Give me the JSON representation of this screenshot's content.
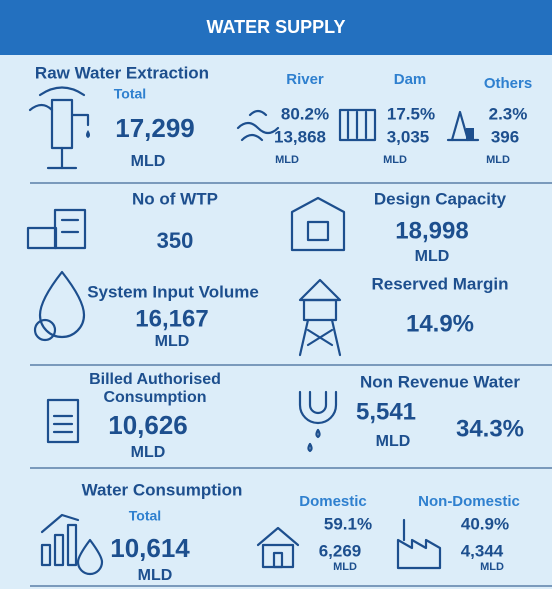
{
  "header": {
    "title": "WATER SUPPLY"
  },
  "raw_water": {
    "title": "Raw Water Extraction",
    "total_label": "Total",
    "total": "17,299",
    "unit": "MLD",
    "sources": [
      {
        "name": "River",
        "percent": "80.2%",
        "volume": "13,868",
        "unit": "MLD"
      },
      {
        "name": "Dam",
        "percent": "17.5%",
        "volume": "3,035",
        "unit": "MLD"
      },
      {
        "name": "Others",
        "percent": "2.3%",
        "volume": "396",
        "unit": "MLD"
      }
    ]
  },
  "wtp": {
    "label": "No of WTP",
    "value": "350"
  },
  "design_capacity": {
    "label": "Design Capacity",
    "value": "18,998",
    "unit": "MLD"
  },
  "system_input": {
    "label": "System Input Volume",
    "value": "16,167",
    "unit": "MLD"
  },
  "reserved_margin": {
    "label": "Reserved Margin",
    "value": "14.9%"
  },
  "billed": {
    "label_lines": [
      "Billed Authorised",
      "Consumption"
    ],
    "value": "10,626",
    "unit": "MLD"
  },
  "nrw": {
    "label": "Non Revenue Water",
    "value": "5,541",
    "unit": "MLD",
    "percent": "34.3%"
  },
  "consumption": {
    "title": "Water Consumption",
    "total_label": "Total",
    "total": "10,614",
    "unit": "MLD",
    "domestic": {
      "name": "Domestic",
      "percent": "59.1%",
      "volume": "6,269",
      "unit": "MLD"
    },
    "non_domestic": {
      "name": "Non-Domestic",
      "percent": "40.9%",
      "volume": "4,344",
      "unit": "MLD"
    }
  }
}
